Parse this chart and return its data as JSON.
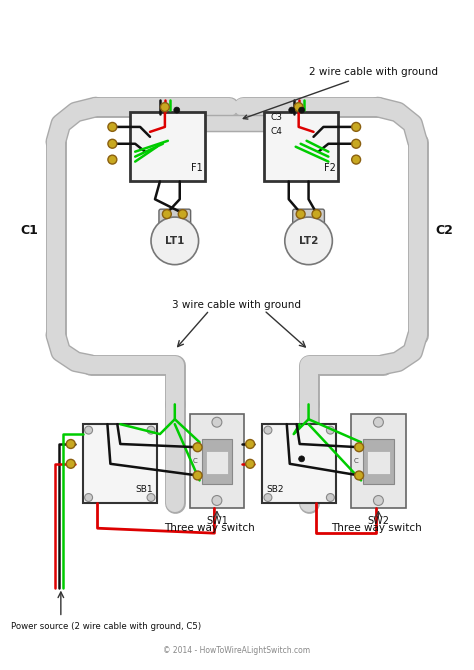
{
  "bg_color": "#ffffff",
  "conduit_color": "#d8d8d8",
  "conduit_edge": "#aaaaaa",
  "wire_black": "#111111",
  "wire_red": "#dd0000",
  "wire_green": "#00cc00",
  "gold_color": "#c8a820",
  "gold_edge": "#8b6010",
  "text_color": "#111111",
  "gray_text": "#888888",
  "box_fill": "#f5f5f5",
  "box_edge": "#333333",
  "switch_fill": "#e0e0e0",
  "switch_edge": "#555555",
  "bulb_fill": "#e8e8e8",
  "label_C1": "C1",
  "label_C2": "C2",
  "label_C3": "C3",
  "label_C4": "C4",
  "label_F1": "F1",
  "label_F2": "F2",
  "label_LT1": "LT1",
  "label_LT2": "LT2",
  "label_SB1": "SB1",
  "label_SB2": "SB2",
  "label_SW1": "SW1",
  "label_SW2": "SW2",
  "label_top": "2 wire cable with ground",
  "label_mid": "3 wire cable with ground",
  "label_switch": "Three way switch",
  "label_power": "Power source (2 wire cable with ground, C5)",
  "label_copyright": "© 2014 - HowToWireALightSwitch.com"
}
